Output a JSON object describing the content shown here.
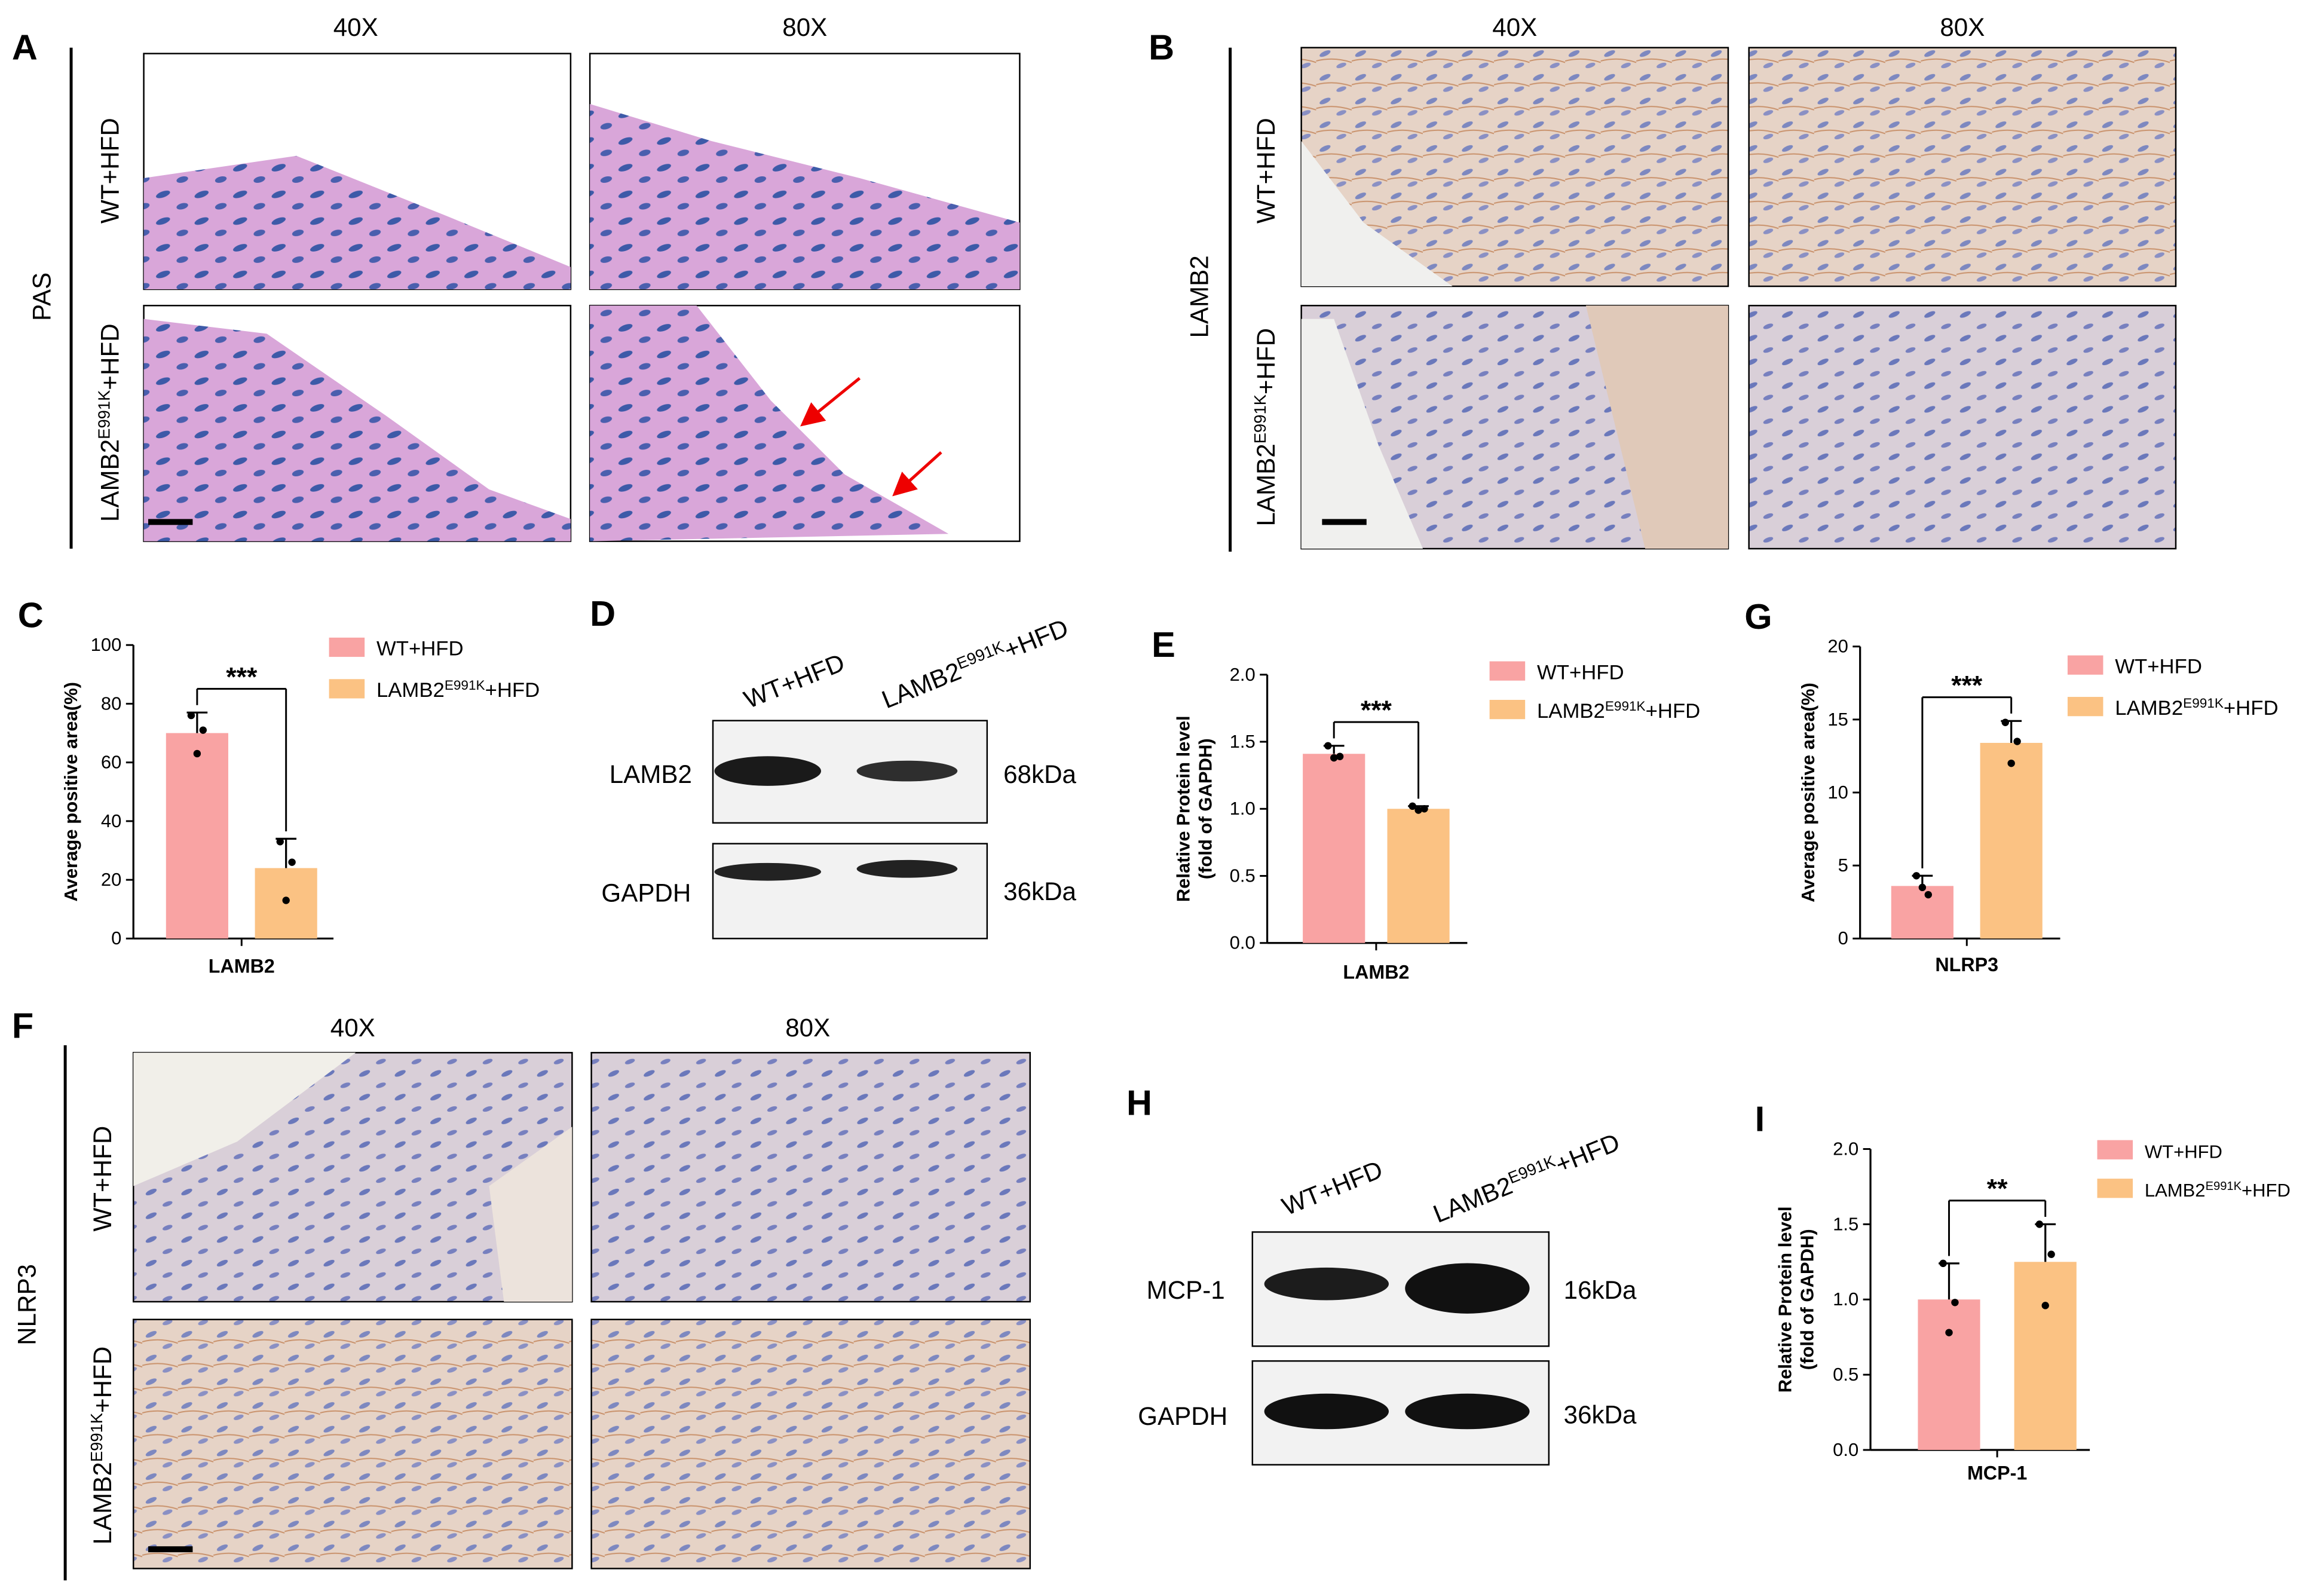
{
  "panels": {
    "A": {
      "label": "A",
      "stain": "PAS",
      "columns": [
        "40X",
        "80X"
      ],
      "rows": [
        "WT+HFD",
        [
          "LAMB2",
          "E991K",
          "+HFD"
        ]
      ]
    },
    "B": {
      "label": "B",
      "stain": "LAMB2",
      "columns": [
        "40X",
        "80X"
      ],
      "rows": [
        "WT+HFD",
        [
          "LAMB2",
          "E991K",
          "+HFD"
        ]
      ]
    },
    "F": {
      "label": "F",
      "stain": "NLRP3",
      "columns": [
        "40X",
        "80X"
      ],
      "rows": [
        "WT+HFD",
        [
          "LAMB2",
          "E991K",
          "+HFD"
        ]
      ]
    },
    "D": {
      "label": "D",
      "lanes": [
        "WT+HFD",
        [
          "LAMB2",
          "E991K",
          "+HFD"
        ]
      ],
      "bands": [
        {
          "name": "LAMB2",
          "size": "68kDa"
        },
        {
          "name": "GAPDH",
          "size": "36kDa"
        }
      ]
    },
    "H": {
      "label": "H",
      "lanes": [
        "WT+HFD",
        [
          "LAMB2",
          "E991K",
          "+HFD"
        ]
      ],
      "bands": [
        {
          "name": "MCP-1",
          "size": "16kDa"
        },
        {
          "name": "GAPDH",
          "size": "36kDa"
        }
      ]
    }
  },
  "chart_data": [
    {
      "type": "bar",
      "label": "C",
      "ylabel": [
        "Average positive area(%)"
      ],
      "categories": [
        "LAMB2"
      ],
      "ylim": [
        0,
        100
      ],
      "yticks": [
        0,
        20,
        40,
        60,
        80,
        100
      ],
      "significance": "***",
      "series": [
        {
          "name": "WT+HFD",
          "color": "#f9a3a3",
          "values": [
            70
          ],
          "errors": [
            7
          ],
          "points": [
            76,
            71,
            63
          ]
        },
        {
          "name": [
            "LAMB2",
            "E991K",
            "+HFD"
          ],
          "color": "#fbc283",
          "values": [
            24
          ],
          "errors": [
            10
          ],
          "points": [
            33,
            26,
            13
          ]
        }
      ]
    },
    {
      "type": "bar",
      "label": "E",
      "ylabel": [
        "Relative Protein level",
        "(fold of GAPDH)"
      ],
      "categories": [
        "LAMB2"
      ],
      "ylim": [
        0,
        2
      ],
      "yticks": [
        {
          "value": 0,
          "label": "0.0"
        },
        0.5,
        {
          "value": 1,
          "label": "1.0"
        },
        1.5,
        {
          "value": 2,
          "label": "2.0"
        }
      ],
      "significance": "***",
      "series": [
        {
          "name": "WT+HFD",
          "color": "#f9a3a3",
          "values": [
            1.41
          ],
          "errors": [
            0.06
          ],
          "points": [
            1.47,
            1.39,
            1.38
          ]
        },
        {
          "name": [
            "LAMB2",
            "E991K",
            "+HFD"
          ],
          "color": "#fbc283",
          "values": [
            1.0
          ],
          "errors": [
            0.02
          ],
          "points": [
            1.02,
            1.0,
            0.99
          ]
        }
      ]
    },
    {
      "type": "bar",
      "label": "G",
      "ylabel": [
        "Average positive area(%)"
      ],
      "categories": [
        "NLRP3"
      ],
      "ylim": [
        0,
        20
      ],
      "yticks": [
        0,
        5,
        10,
        15,
        20
      ],
      "significance": "***",
      "series": [
        {
          "name": "WT+HFD",
          "color": "#f9a3a3",
          "values": [
            3.6
          ],
          "errors": [
            0.7
          ],
          "points": [
            4.3,
            3.0,
            3.5
          ]
        },
        {
          "name": [
            "LAMB2",
            "E991K",
            "+HFD"
          ],
          "color": "#fbc283",
          "values": [
            13.4
          ],
          "errors": [
            1.5
          ],
          "points": [
            14.8,
            13.5,
            12.0
          ]
        }
      ]
    },
    {
      "type": "bar",
      "label": "I",
      "ylabel": [
        "Relative Protein level",
        "(fold of GAPDH)"
      ],
      "categories": [
        "MCP-1"
      ],
      "ylim": [
        0,
        2
      ],
      "yticks": [
        {
          "value": 0,
          "label": "0.0"
        },
        0.5,
        {
          "value": 1,
          "label": "1.0"
        },
        1.5,
        {
          "value": 2,
          "label": "2.0"
        }
      ],
      "significance": "**",
      "series": [
        {
          "name": "WT+HFD",
          "color": "#f9a3a3",
          "values": [
            1.0
          ],
          "errors": [
            0.24
          ],
          "points": [
            1.24,
            0.98,
            0.78
          ]
        },
        {
          "name": [
            "LAMB2",
            "E991K",
            "+HFD"
          ],
          "color": "#fbc283",
          "values": [
            1.25
          ],
          "errors": [
            0.25
          ],
          "points": [
            1.5,
            1.3,
            0.96
          ]
        }
      ]
    }
  ]
}
